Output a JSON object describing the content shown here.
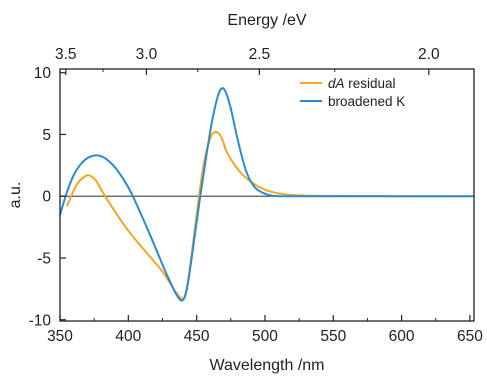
{
  "chart_data": {
    "type": "line",
    "xlabel": "Wavelength /nm",
    "ylabel": "a.u.",
    "top_xlabel": "Energy /eV",
    "xlim": [
      350,
      653
    ],
    "ylim": [
      -10.1,
      10.3
    ],
    "x_ticks": [
      "350",
      "400",
      "450",
      "500",
      "550",
      "600",
      "650"
    ],
    "y_ticks": [
      "10",
      "5",
      "0",
      "-5",
      "-10"
    ],
    "top_ticks": [
      "3.5",
      "3.0",
      "2.5",
      "2.0"
    ],
    "top_tick_values_eV": [
      3.5,
      3.0,
      2.5,
      2.0
    ],
    "zero_line": true,
    "grid": false,
    "legend_position": "top-right",
    "legend": {
      "series_a_italic": "dA",
      "series_a_rest": " residual",
      "series_b": "broadened K"
    },
    "colors": {
      "series_a": "#f5a623",
      "series_b": "#2a8bd0",
      "axis": "#222222",
      "zero": "#555555"
    },
    "series": [
      {
        "name": "dA residual",
        "color": "#f5a623",
        "x": [
          355,
          362,
          367,
          371,
          376,
          382,
          390,
          400,
          412,
          425,
          435,
          440,
          443,
          446,
          450,
          455,
          460,
          464,
          468,
          472,
          478,
          485,
          495,
          505,
          520,
          540,
          570,
          620,
          653
        ],
        "y": [
          -0.8,
          0.9,
          1.5,
          1.7,
          1.3,
          0.2,
          -1.2,
          -2.8,
          -4.4,
          -6.1,
          -7.8,
          -8.3,
          -7.4,
          -5.0,
          -1.5,
          2.5,
          4.7,
          5.2,
          4.8,
          3.6,
          2.5,
          1.6,
          0.8,
          0.35,
          0.1,
          0.03,
          0.01,
          0.0,
          0.0
        ]
      },
      {
        "name": "broadened K",
        "color": "#2a8bd0",
        "x": [
          350,
          355,
          360,
          366,
          372,
          378,
          384,
          392,
          402,
          415,
          428,
          436,
          440,
          443,
          447,
          452,
          457,
          461,
          465,
          468,
          471,
          475,
          480,
          486,
          492,
          498,
          505,
          515,
          540,
          600,
          653
        ],
        "y": [
          -1.5,
          0.3,
          1.7,
          2.7,
          3.2,
          3.3,
          3.0,
          2.1,
          0.3,
          -2.9,
          -6.3,
          -8.1,
          -8.4,
          -7.4,
          -4.5,
          -0.5,
          3.2,
          5.9,
          7.9,
          8.7,
          8.5,
          7.1,
          4.6,
          2.1,
          0.8,
          0.3,
          0.05,
          0.0,
          0.0,
          0.0,
          0.0
        ]
      }
    ]
  }
}
